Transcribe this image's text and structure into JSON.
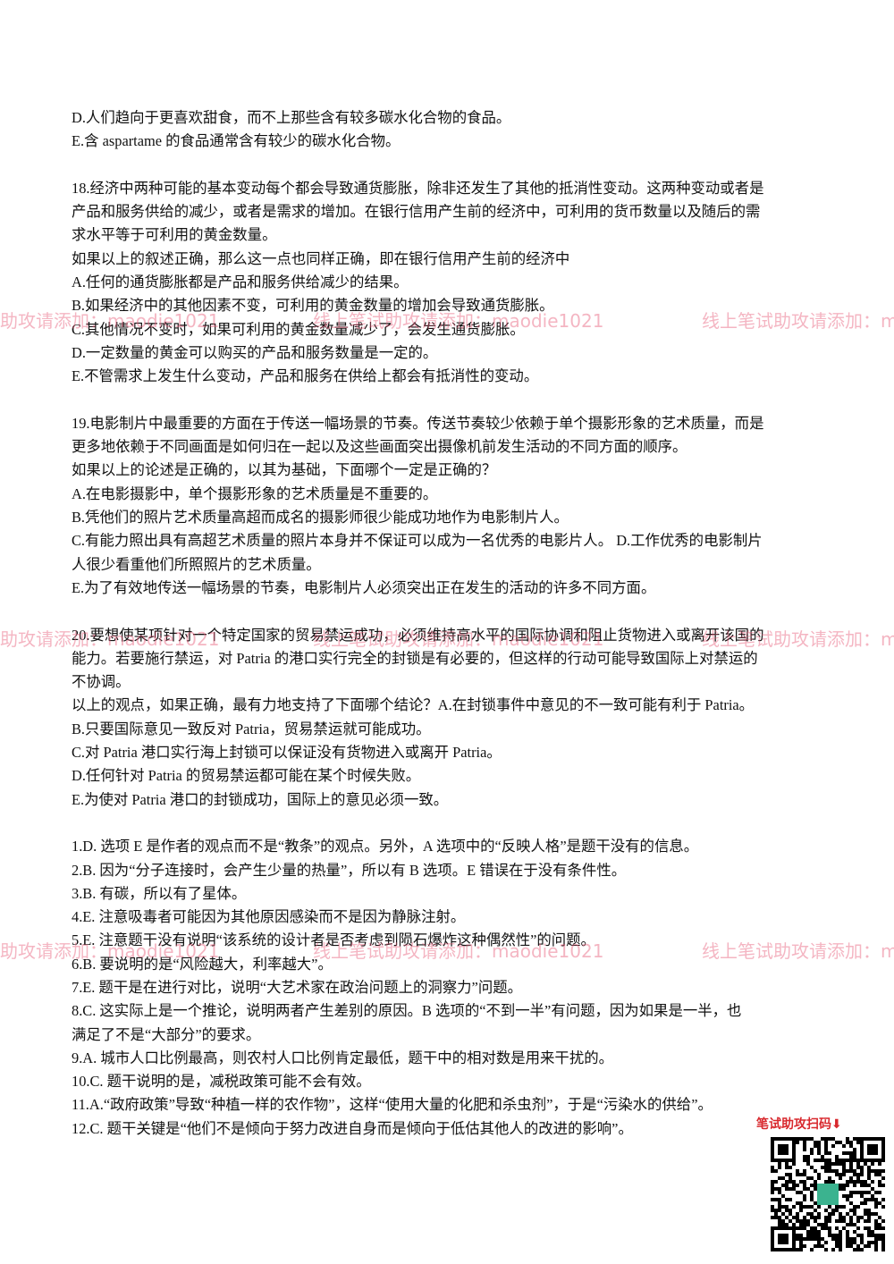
{
  "blocks": [
    {
      "lines": [
        "D.人们趋向于更喜欢甜食，而不上那些含有较多碳水化合物的食品。",
        "E.含 aspartame 的食品通常含有较少的碳水化合物。"
      ]
    },
    {
      "lines": [
        "18.经济中两种可能的基本变动每个都会导致通货膨胀，除非还发生了其他的抵消性变动。这两种变动或者是",
        "产品和服务供给的减少，或者是需求的增加。在银行信用产生前的经济中，可利用的货币数量以及随后的需",
        "求水平等于可利用的黄金数量。",
        "如果以上的叙述正确，那么这一点也同样正确，即在银行信用产生前的经济中",
        "A.任何的通货膨胀都是产品和服务供给减少的结果。",
        "B.如果经济中的其他因素不变，可利用的黄金数量的增加会导致通货膨胀。",
        "C.其他情况不变时，如果可利用的黄金数量减少了，会发生通货膨胀。",
        "D.一定数量的黄金可以购买的产品和服务数量是一定的。",
        "E.不管需求上发生什么变动，产品和服务在供给上都会有抵消性的变动。"
      ]
    },
    {
      "lines": [
        "19.电影制片中最重要的方面在于传送一幅场景的节奏。传送节奏较少依赖于单个摄影形象的艺术质量，而是",
        "更多地依赖于不同画面是如何归在一起以及这些画面突出摄像机前发生活动的不同方面的顺序。",
        "如果以上的论述是正确的，以其为基础，下面哪个一定是正确的？",
        "A.在电影摄影中，单个摄影形象的艺术质量是不重要的。",
        "B.凭他们的照片艺术质量高超而成名的摄影师很少能成功地作为电影制片人。",
        "C.有能力照出具有高超艺术质量的照片本身并不保证可以成为一名优秀的电影片人。 D.工作优秀的电影制片",
        "人很少看重他们所照照片的艺术质量。",
        "E.为了有效地传送一幅场景的节奏，电影制片人必须突出正在发生的活动的许多不同方面。"
      ]
    },
    {
      "lines": [
        "20.要想使某项针对一个特定国家的贸易禁运成功，必须维持高水平的国际协调和阻止货物进入或离开该国的",
        "能力。若要施行禁运，对 Patria 的港口实行完全的封锁是有必要的，但这样的行动可能导致国际上对禁运的",
        "不协调。",
        "以上的观点，如果正确，最有力地支持了下面哪个结论？A.在封锁事件中意见的不一致可能有利于 Patria。",
        "B.只要国际意见一致反对 Patria，贸易禁运就可能成功。",
        "C.对 Patria 港口实行海上封锁可以保证没有货物进入或离开 Patria。",
        "D.任何针对 Patria 的贸易禁运都可能在某个时候失败。",
        "E.为使对 Patria 港口的封锁成功，国际上的意见必须一致。"
      ]
    },
    {
      "lines": [
        "1.D. 选项 E 是作者的观点而不是“教条”的观点。另外，A 选项中的“反映人格”是题干没有的信息。",
        "2.B. 因为“分子连接时，会产生少量的热量”，所以有 B 选项。E 错误在于没有条件性。",
        "3.B. 有碳，所以有了星体。",
        "4.E. 注意吸毒者可能因为其他原因感染而不是因为静脉注射。",
        "5.E. 注意题干没有说明“该系统的设计者是否考虑到陨石爆炸这种偶然性”的问题。",
        "6.B. 要说明的是“风险越大，利率越大”。",
        "7.E. 题干是在进行对比，说明“大艺术家在政治问题上的洞察力”问题。",
        "8.C. 这实际上是一个推论，说明两者产生差别的原因。B 选项的“不到一半”有问题，因为如果是一半，也",
        "满足了不是“大部分”的要求。",
        "9.A. 城市人口比例最高，则农村人口比例肯定最低，题干中的相对数是用来干扰的。",
        "10.C. 题干说明的是，减税政策可能不会有效。",
        "11.A.“政府政策”导致“种植一样的农作物”，这样“使用大量的化肥和杀虫剂”，于是“污染水的供给”。",
        "12.C. 题干关键是“他们不是倾向于努力改进自身而是倾向于低估其他人的改进的影响”。"
      ]
    }
  ],
  "watermark": "线上笔试助攻请添加：maodie1021",
  "qr_label": "笔试助攻扫码⬇"
}
